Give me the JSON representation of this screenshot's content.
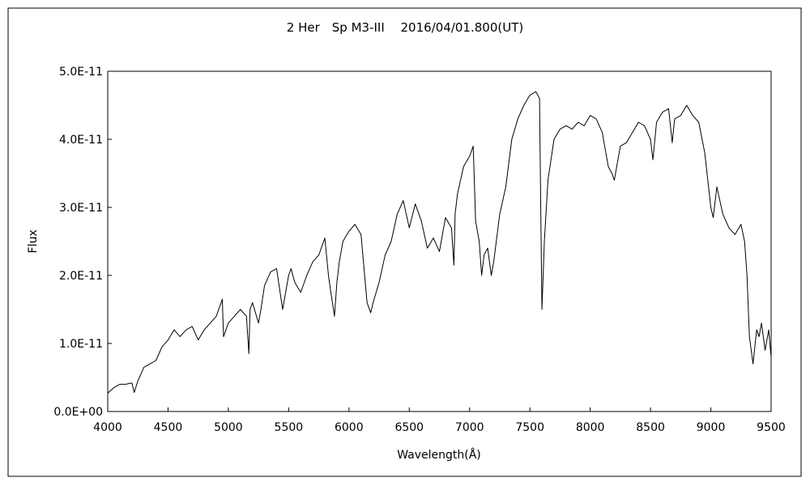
{
  "chart_data": {
    "type": "line",
    "title": "2 Her　Sp M3-III　 2016/04/01.800(UT)",
    "xlabel": "Wavelength(Å)",
    "ylabel": "Flux",
    "xlim": [
      4000,
      9500
    ],
    "ylim": [
      0,
      5e-11
    ],
    "x_ticks": [
      4000,
      4500,
      5000,
      5500,
      6000,
      6500,
      7000,
      7500,
      8000,
      8500,
      9000,
      9500
    ],
    "x_tick_labels": [
      "4000",
      "4500",
      "5000",
      "5500",
      "6000",
      "6500",
      "7000",
      "7500",
      "8000",
      "8500",
      "9000",
      "9500"
    ],
    "y_ticks": [
      0,
      1e-11,
      2e-11,
      3e-11,
      4e-11,
      5e-11
    ],
    "y_tick_labels": [
      "0.0E+00",
      "1.0E-11",
      "2.0E-11",
      "3.0E-11",
      "4.0E-11",
      "5.0E-11"
    ],
    "grid": false,
    "series": [
      {
        "name": "",
        "color": "#000000",
        "x": [
          4000,
          4050,
          4100,
          4150,
          4200,
          4220,
          4250,
          4300,
          4350,
          4400,
          4450,
          4500,
          4550,
          4600,
          4650,
          4700,
          4750,
          4800,
          4850,
          4900,
          4950,
          4960,
          5000,
          5050,
          5100,
          5150,
          5170,
          5180,
          5200,
          5250,
          5270,
          5300,
          5350,
          5400,
          5450,
          5500,
          5520,
          5550,
          5600,
          5650,
          5700,
          5750,
          5800,
          5830,
          5850,
          5880,
          5900,
          5920,
          5950,
          6000,
          6050,
          6100,
          6150,
          6180,
          6200,
          6250,
          6300,
          6350,
          6400,
          6450,
          6500,
          6550,
          6600,
          6650,
          6700,
          6750,
          6800,
          6850,
          6870,
          6880,
          6900,
          6950,
          7000,
          7030,
          7050,
          7080,
          7100,
          7120,
          7150,
          7180,
          7200,
          7250,
          7300,
          7350,
          7400,
          7450,
          7500,
          7550,
          7580,
          7590,
          7600,
          7610,
          7620,
          7650,
          7700,
          7750,
          7800,
          7850,
          7900,
          7950,
          8000,
          8050,
          8100,
          8150,
          8180,
          8200,
          8220,
          8250,
          8300,
          8350,
          8400,
          8450,
          8500,
          8520,
          8550,
          8600,
          8650,
          8680,
          8700,
          8750,
          8800,
          8850,
          8900,
          8950,
          9000,
          9020,
          9050,
          9100,
          9150,
          9200,
          9250,
          9280,
          9300,
          9320,
          9350,
          9380,
          9400,
          9420,
          9450,
          9480,
          9500
        ],
        "values": [
          2.7e-12,
          3.5e-12,
          4e-12,
          4e-12,
          4.2e-12,
          2.8e-12,
          4.5e-12,
          6.5e-12,
          7e-12,
          7.5e-12,
          9.5e-12,
          1.05e-11,
          1.2e-11,
          1.1e-11,
          1.2e-11,
          1.25e-11,
          1.05e-11,
          1.2e-11,
          1.3e-11,
          1.4e-11,
          1.65e-11,
          1.1e-11,
          1.3e-11,
          1.4e-11,
          1.5e-11,
          1.4e-11,
          8.5e-12,
          1.5e-11,
          1.6e-11,
          1.3e-11,
          1.5e-11,
          1.85e-11,
          2.05e-11,
          2.1e-11,
          1.5e-11,
          2e-11,
          2.1e-11,
          1.9e-11,
          1.75e-11,
          2e-11,
          2.2e-11,
          2.3e-11,
          2.55e-11,
          2e-11,
          1.75e-11,
          1.4e-11,
          1.9e-11,
          2.2e-11,
          2.5e-11,
          2.65e-11,
          2.75e-11,
          2.6e-11,
          1.6e-11,
          1.45e-11,
          1.6e-11,
          1.9e-11,
          2.3e-11,
          2.5e-11,
          2.9e-11,
          3.1e-11,
          2.7e-11,
          3.05e-11,
          2.8e-11,
          2.4e-11,
          2.55e-11,
          2.35e-11,
          2.85e-11,
          2.7e-11,
          2.15e-11,
          2.9e-11,
          3.2e-11,
          3.6e-11,
          3.75e-11,
          3.9e-11,
          2.8e-11,
          2.5e-11,
          2e-11,
          2.3e-11,
          2.4e-11,
          2e-11,
          2.2e-11,
          2.9e-11,
          3.3e-11,
          4e-11,
          4.3e-11,
          4.5e-11,
          4.65e-11,
          4.7e-11,
          4.6e-11,
          3e-11,
          1.5e-11,
          2e-11,
          2.5e-11,
          3.4e-11,
          4e-11,
          4.15e-11,
          4.2e-11,
          4.15e-11,
          4.25e-11,
          4.2e-11,
          4.35e-11,
          4.3e-11,
          4.1e-11,
          3.6e-11,
          3.5e-11,
          3.4e-11,
          3.6e-11,
          3.9e-11,
          3.95e-11,
          4.1e-11,
          4.25e-11,
          4.2e-11,
          4e-11,
          3.7e-11,
          4.25e-11,
          4.4e-11,
          4.45e-11,
          3.95e-11,
          4.3e-11,
          4.35e-11,
          4.5e-11,
          4.35e-11,
          4.25e-11,
          3.8e-11,
          3e-11,
          2.85e-11,
          3.3e-11,
          2.9e-11,
          2.7e-11,
          2.6e-11,
          2.75e-11,
          2.5e-11,
          2e-11,
          1.1e-11,
          7e-12,
          1.2e-11,
          1.1e-11,
          1.3e-11,
          9e-12,
          1.2e-11,
          8e-12
        ]
      }
    ]
  }
}
